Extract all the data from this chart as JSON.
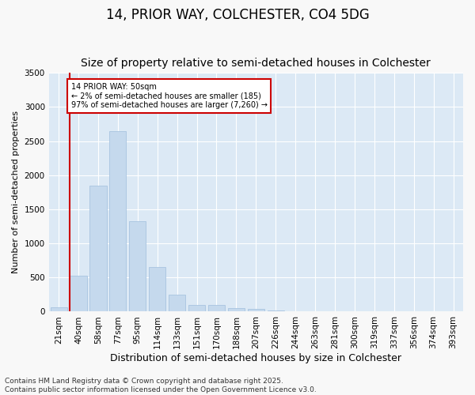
{
  "title": "14, PRIOR WAY, COLCHESTER, CO4 5DG",
  "subtitle": "Size of property relative to semi-detached houses in Colchester",
  "xlabel": "Distribution of semi-detached houses by size in Colchester",
  "ylabel": "Number of semi-detached properties",
  "categories": [
    "21sqm",
    "40sqm",
    "58sqm",
    "77sqm",
    "95sqm",
    "114sqm",
    "133sqm",
    "151sqm",
    "170sqm",
    "188sqm",
    "207sqm",
    "226sqm",
    "244sqm",
    "263sqm",
    "281sqm",
    "300sqm",
    "319sqm",
    "337sqm",
    "356sqm",
    "374sqm",
    "393sqm"
  ],
  "values": [
    60,
    530,
    1850,
    2650,
    1330,
    650,
    245,
    100,
    100,
    55,
    35,
    20,
    10,
    5,
    3,
    2,
    1,
    1,
    0,
    0,
    0
  ],
  "bar_color": "#c5d9ed",
  "bar_edge_color": "#a8c4e0",
  "bg_color": "#dce9f5",
  "grid_color": "#ffffff",
  "vline_color": "#cc0000",
  "annotation_text": "14 PRIOR WAY: 50sqm\n← 2% of semi-detached houses are smaller (185)\n97% of semi-detached houses are larger (7,260) →",
  "annotation_box_color": "#cc0000",
  "ylim": [
    0,
    3500
  ],
  "yticks": [
    0,
    500,
    1000,
    1500,
    2000,
    2500,
    3000,
    3500
  ],
  "footer": "Contains HM Land Registry data © Crown copyright and database right 2025.\nContains public sector information licensed under the Open Government Licence v3.0.",
  "title_fontsize": 12,
  "subtitle_fontsize": 10,
  "xlabel_fontsize": 9,
  "ylabel_fontsize": 8,
  "tick_fontsize": 7.5,
  "footer_fontsize": 6.5,
  "fig_bg": "#f8f8f8"
}
